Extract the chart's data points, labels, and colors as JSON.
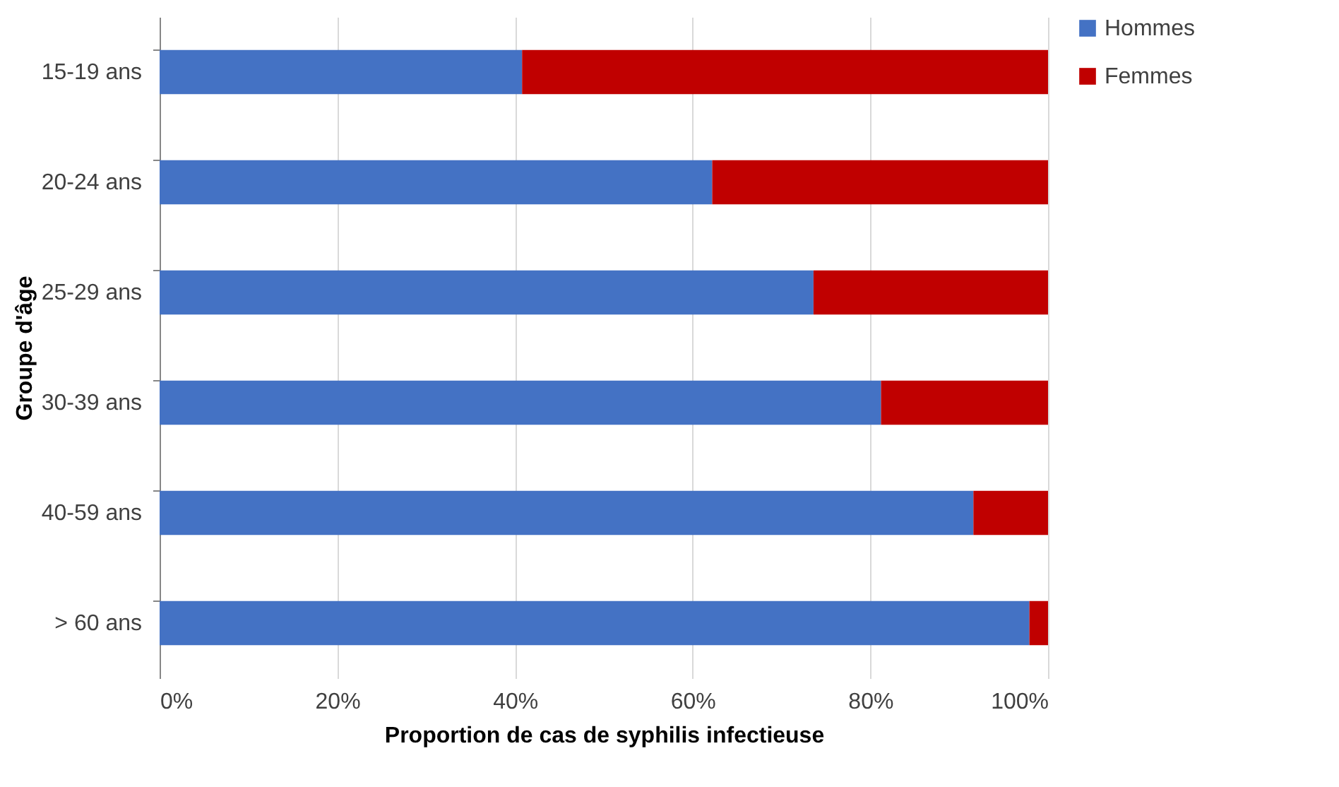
{
  "chart_data": {
    "type": "bar",
    "orientation": "horizontal",
    "stacked": true,
    "xlabel": "Proportion  de cas de syphilis infectieuse",
    "ylabel": "Groupe d'âge",
    "categories": [
      "15-19 ans",
      "20-24 ans",
      "25-29 ans",
      "30-39 ans",
      "40-59 ans",
      "> 60 ans"
    ],
    "series": [
      {
        "name": "Hommes",
        "color": "#4472c4",
        "values": [
          40.8,
          62.2,
          73.6,
          81.2,
          91.6,
          97.9
        ]
      },
      {
        "name": "Femmes",
        "color": "#c00000",
        "values": [
          59.2,
          37.8,
          26.4,
          18.8,
          8.4,
          2.1
        ]
      }
    ],
    "xlim": [
      0,
      100
    ],
    "xticks": [
      {
        "value": 0,
        "label": "0%"
      },
      {
        "value": 20,
        "label": "20%"
      },
      {
        "value": 40,
        "label": "40%"
      },
      {
        "value": 60,
        "label": "60%"
      },
      {
        "value": 80,
        "label": "80%"
      },
      {
        "value": 100,
        "label": "100%"
      }
    ],
    "grid": "x",
    "legend": "right"
  }
}
